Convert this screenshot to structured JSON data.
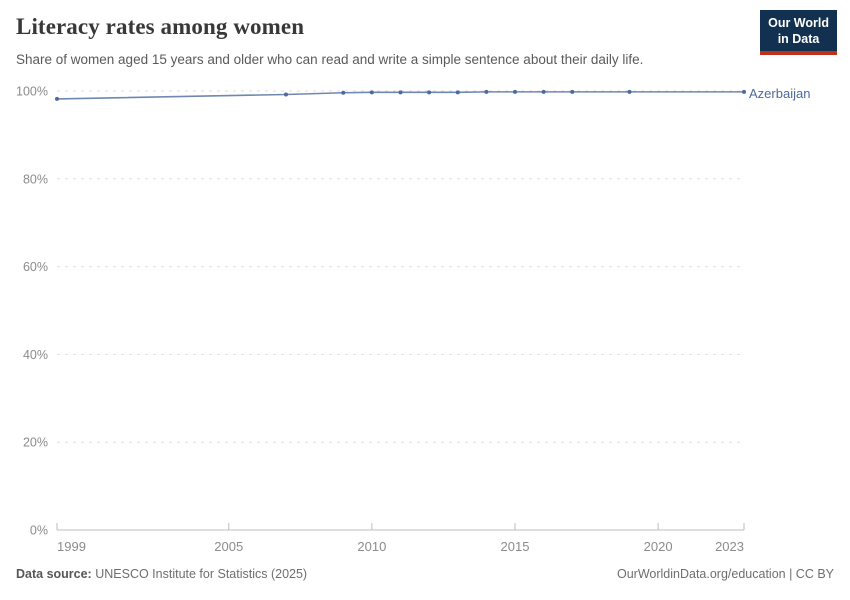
{
  "header": {
    "title": "Literacy rates among women",
    "subtitle": "Share of women aged 15 years and older who can read and write a simple sentence about their daily life.",
    "logo_line1": "Our World",
    "logo_line2": "in Data"
  },
  "chart_data": {
    "type": "line",
    "title": "Literacy rates among women",
    "x": [
      1999,
      2007,
      2009,
      2010,
      2011,
      2012,
      2013,
      2014,
      2015,
      2016,
      2017,
      2019,
      2023
    ],
    "series": [
      {
        "name": "Azerbaijan",
        "color": "#4C6A9C",
        "values": [
          98.2,
          99.2,
          99.6,
          99.7,
          99.7,
          99.7,
          99.7,
          99.8,
          99.8,
          99.8,
          99.8,
          99.8,
          99.8
        ]
      }
    ],
    "xlabel": "",
    "ylabel": "",
    "xlim": [
      1999,
      2023
    ],
    "ylim": [
      0,
      100
    ],
    "xticks": {
      "values": [
        1999,
        2005,
        2010,
        2015,
        2020,
        2023
      ],
      "labels": [
        "1999",
        "2005",
        "2010",
        "2015",
        "2020",
        "2023"
      ]
    },
    "yticks": {
      "values": [
        0,
        20,
        40,
        60,
        80,
        100
      ],
      "labels": [
        "0%",
        "20%",
        "40%",
        "60%",
        "80%",
        "100%"
      ]
    },
    "grid": "horizontal-dashed",
    "legend_position": "end-of-line-label"
  },
  "footer": {
    "data_source_label": "Data source:",
    "data_source_value": "UNESCO Institute for Statistics (2025)",
    "rights": "OurWorldinData.org/education | CC BY"
  },
  "colors": {
    "accent_line": "#4C6A9C",
    "logo_bg": "#12304F",
    "logo_red": "#C0301F",
    "grid": "#DDDDDD",
    "axis": "#BDBDBD",
    "tick_text": "#8B8B8B",
    "title_text": "#383838"
  }
}
